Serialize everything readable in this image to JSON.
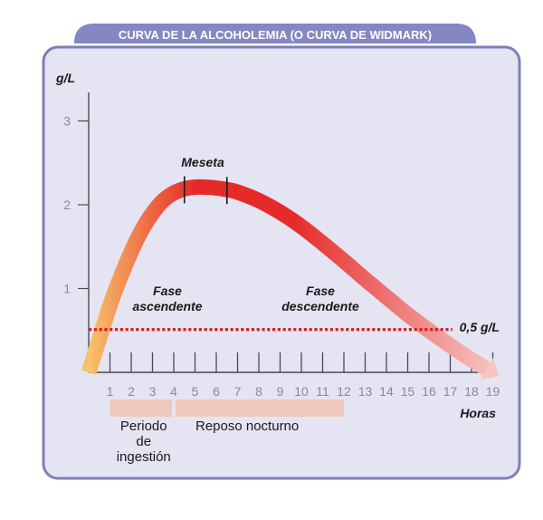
{
  "title": "CURVA DE LA ALCOHOLEMIA (O CURVA DE WIDMARK)",
  "colors": {
    "frame_fill": "#e4e4f2",
    "frame_stroke": "#7d7fb8",
    "title_bg": "#8487c2",
    "axis": "#4a4a52",
    "threshold": "#d21e24",
    "band": "#f1c8bc",
    "curve_start": "#f7c36a",
    "curve_mid": "#e62a2a",
    "curve_end": "#f6c6c2"
  },
  "chart_data": {
    "type": "line",
    "title": "CURVA DE LA ALCOHOLEMIA (O CURVA DE WIDMARK)",
    "xlabel": "Horas",
    "ylabel": "g/L",
    "xlim": [
      0,
      19
    ],
    "ylim": [
      0,
      3
    ],
    "x_ticks": [
      1,
      2,
      3,
      4,
      5,
      6,
      7,
      8,
      9,
      10,
      11,
      12,
      13,
      14,
      15,
      16,
      17,
      18,
      19
    ],
    "y_ticks": [
      1,
      2,
      3
    ],
    "grid": false,
    "series": [
      {
        "x": [
          0,
          0.5,
          1,
          1.5,
          2,
          2.5,
          3,
          3.5,
          4,
          4.5,
          5,
          5.5,
          6,
          6.5,
          7,
          8,
          9,
          10,
          11,
          12,
          13,
          14,
          15,
          16,
          17,
          18,
          19
        ],
        "y": [
          0,
          0.4,
          0.8,
          1.14,
          1.44,
          1.7,
          1.9,
          2.05,
          2.14,
          2.19,
          2.21,
          2.21,
          2.2,
          2.18,
          2.15,
          2.05,
          1.91,
          1.74,
          1.54,
          1.33,
          1.11,
          0.9,
          0.69,
          0.5,
          0.32,
          0.15,
          0.0
        ]
      }
    ],
    "threshold": {
      "y": 0.5,
      "label": "0,5 g/L"
    },
    "plateau_marks_x": [
      4.5,
      6.5
    ],
    "annotations": {
      "plateau": "Meseta",
      "rise": [
        "Fase",
        "ascendente"
      ],
      "fall": [
        "Fase",
        "descendente"
      ]
    },
    "bands": [
      {
        "x_start": 1,
        "x_end": 4,
        "label_lines": [
          "Periodo",
          "de",
          "ingestión"
        ]
      },
      {
        "x_start": 4,
        "x_end": 12,
        "label_lines": [
          "Reposo nocturno"
        ]
      }
    ]
  }
}
